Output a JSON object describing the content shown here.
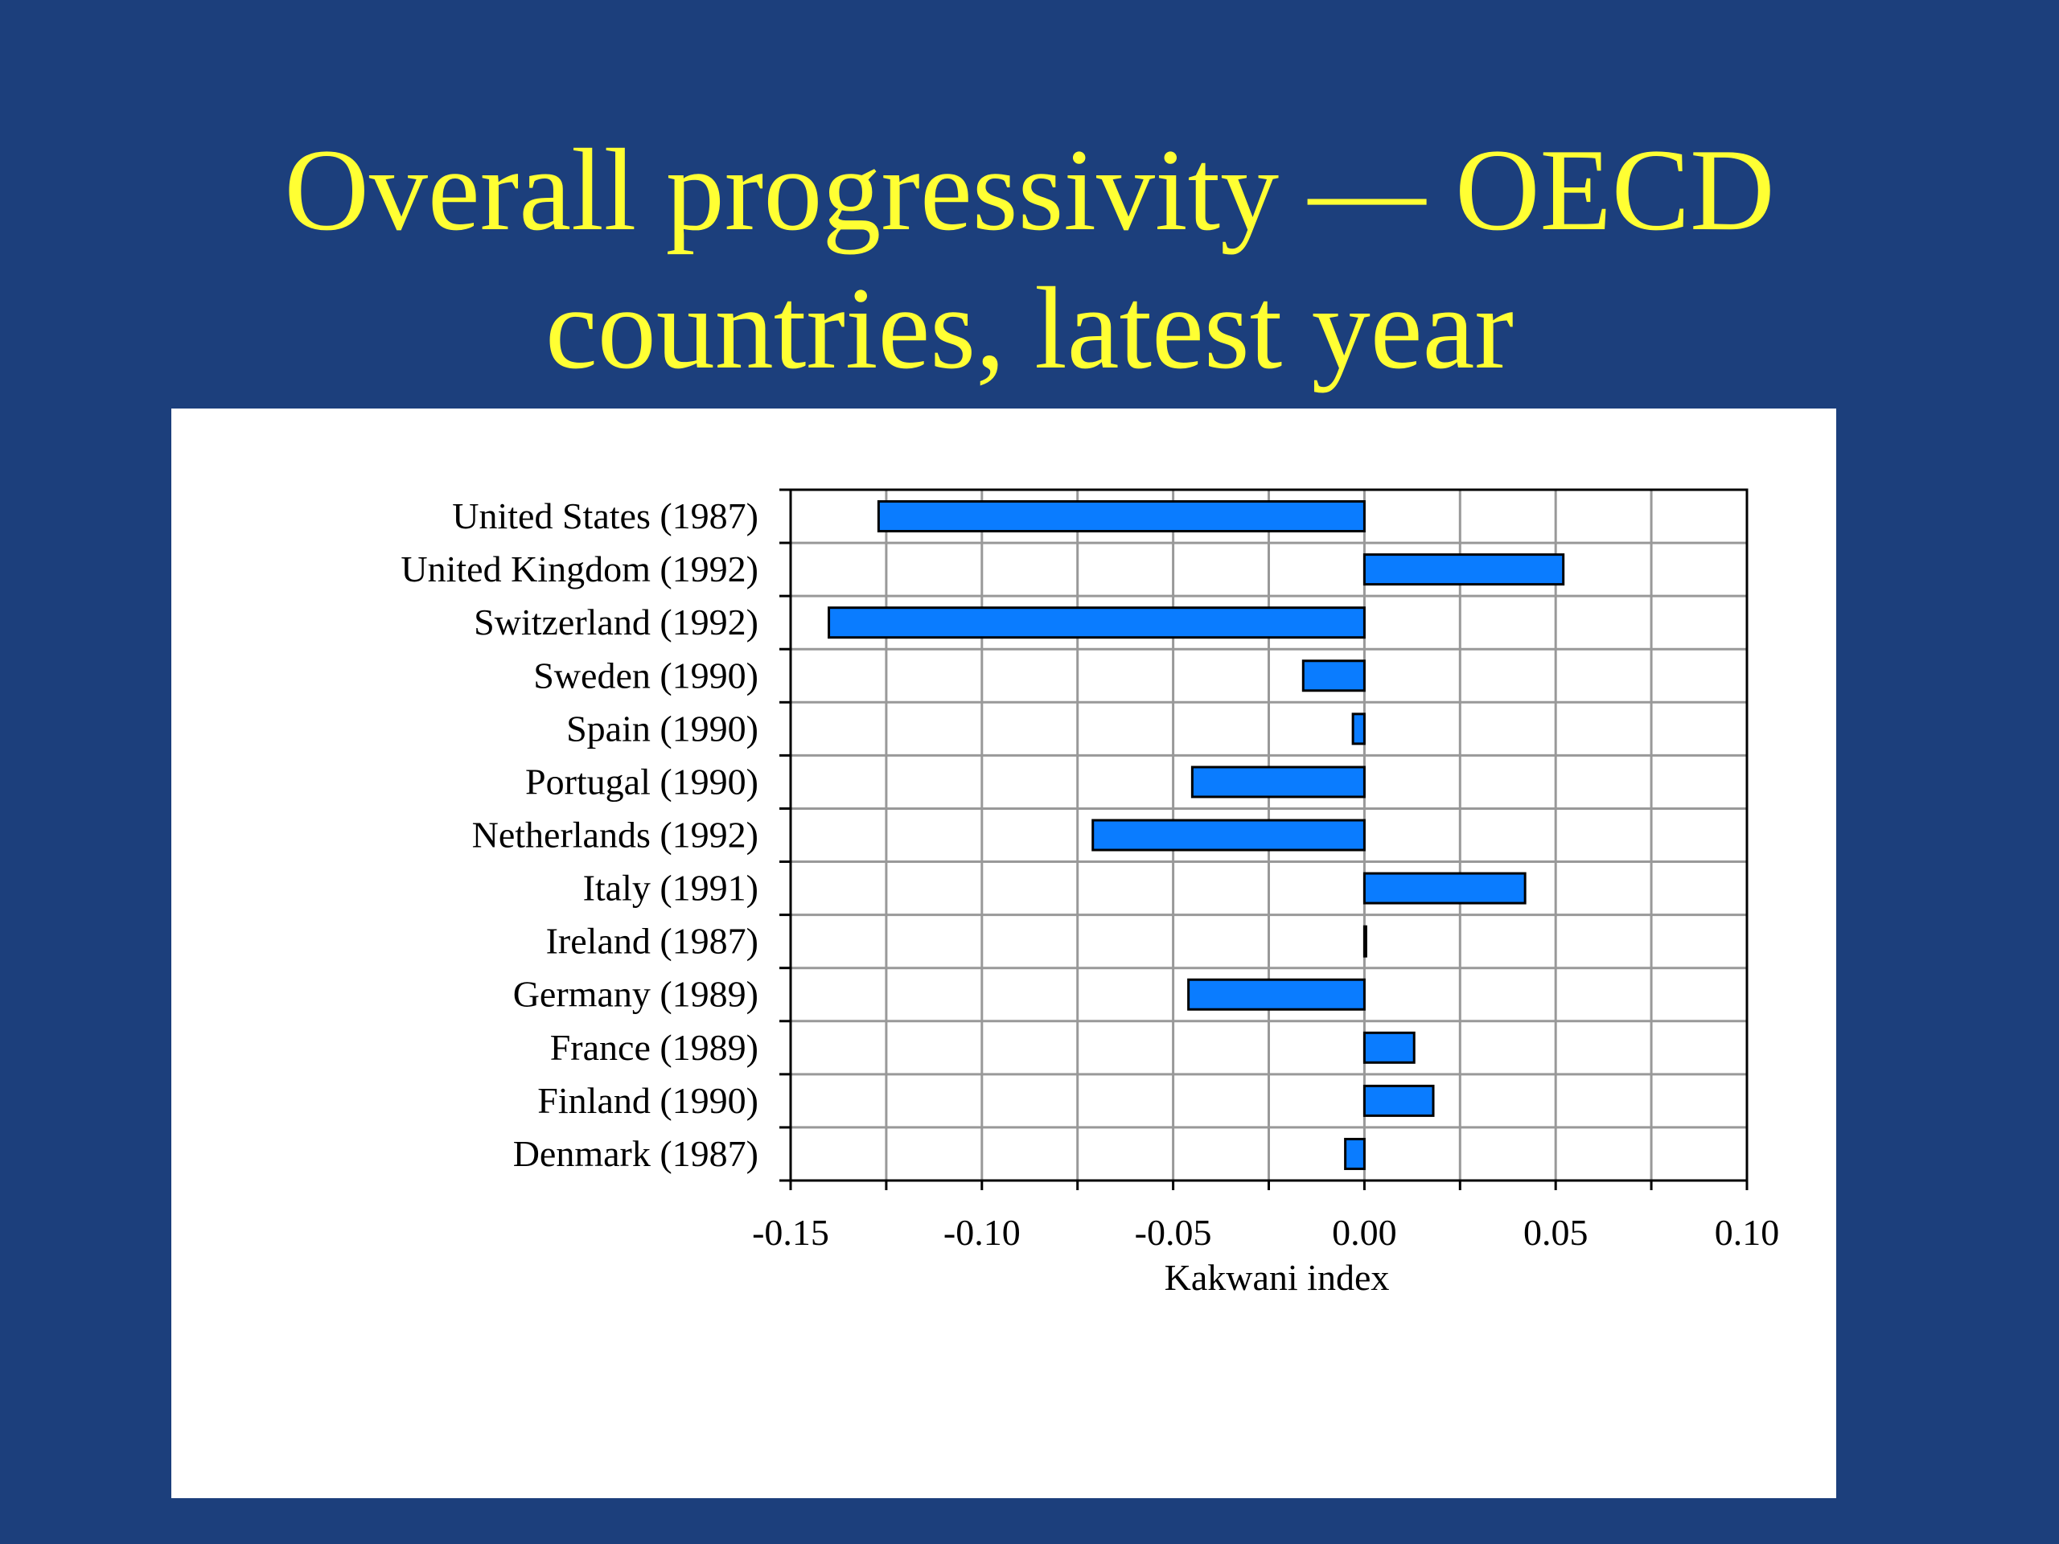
{
  "slide": {
    "title_line1": "Overall progressivity — OECD",
    "title_line2": "countries, latest year"
  },
  "colors": {
    "background": "#1c3f7c",
    "title": "#ffff33",
    "bar_fill": "#0a7cff",
    "grid": "#999999"
  },
  "chart_data": {
    "type": "bar",
    "orientation": "horizontal",
    "categories": [
      "United States (1987)",
      "United Kingdom (1992)",
      "Switzerland (1992)",
      "Sweden (1990)",
      "Spain (1990)",
      "Portugal (1990)",
      "Netherlands (1992)",
      "Italy (1991)",
      "Ireland (1987)",
      "Germany (1989)",
      "France (1989)",
      "Finland (1990)",
      "Denmark (1987)"
    ],
    "values": [
      -0.127,
      0.052,
      -0.14,
      -0.016,
      -0.003,
      -0.045,
      -0.071,
      0.042,
      0.0,
      -0.046,
      0.013,
      0.018,
      -0.005
    ],
    "xlabel": "Kakwani index",
    "xlim": [
      -0.15,
      0.1
    ],
    "xticks": [
      -0.15,
      -0.1,
      -0.05,
      0.0,
      0.05,
      0.1
    ],
    "xtick_labels": [
      "-0.15",
      "-0.10",
      "-0.05",
      "0.00",
      "0.05",
      "0.10"
    ],
    "minor_gridlines": true,
    "grid": true,
    "legend": "none"
  }
}
